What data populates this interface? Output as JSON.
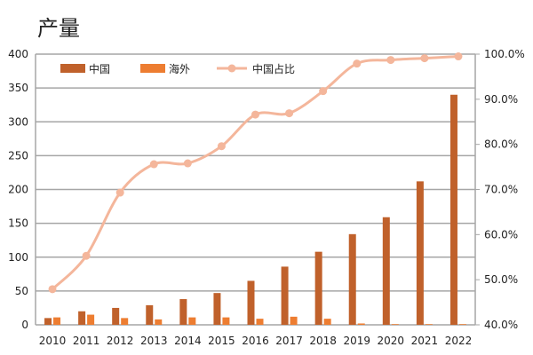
{
  "chart_data": {
    "type": "bar+line",
    "title": "产量",
    "categories": [
      "2010",
      "2011",
      "2012",
      "2013",
      "2014",
      "2015",
      "2016",
      "2017",
      "2018",
      "2019",
      "2020",
      "2021",
      "2022"
    ],
    "series": [
      {
        "name": "中国",
        "type": "bar",
        "axis": "left",
        "color": "#C0612B",
        "values": [
          10,
          20,
          25,
          29,
          38,
          47,
          65,
          86,
          108,
          134,
          159,
          212,
          340
        ]
      },
      {
        "name": "海外",
        "type": "bar",
        "axis": "left",
        "color": "#ED7D31",
        "values": [
          11,
          15,
          10,
          8,
          11,
          11,
          9,
          12,
          9,
          2,
          1,
          1,
          1
        ]
      },
      {
        "name": "中国占比",
        "type": "line",
        "axis": "right",
        "color": "#F4B69B",
        "values": [
          47.9,
          55.3,
          69.3,
          75.6,
          75.8,
          79.6,
          86.6,
          86.9,
          91.8,
          97.9,
          98.7,
          99.1,
          99.5
        ]
      }
    ],
    "yleft": {
      "lim": [
        0,
        400
      ],
      "ticks": [
        "0",
        "50",
        "100",
        "150",
        "200",
        "250",
        "300",
        "350",
        "400"
      ]
    },
    "yright": {
      "lim": [
        40,
        100
      ],
      "ticks": [
        "40.0%",
        "50.0%",
        "60.0%",
        "70.0%",
        "80.0%",
        "90.0%",
        "100.0%"
      ]
    },
    "grid": true,
    "legend": "top-left"
  }
}
